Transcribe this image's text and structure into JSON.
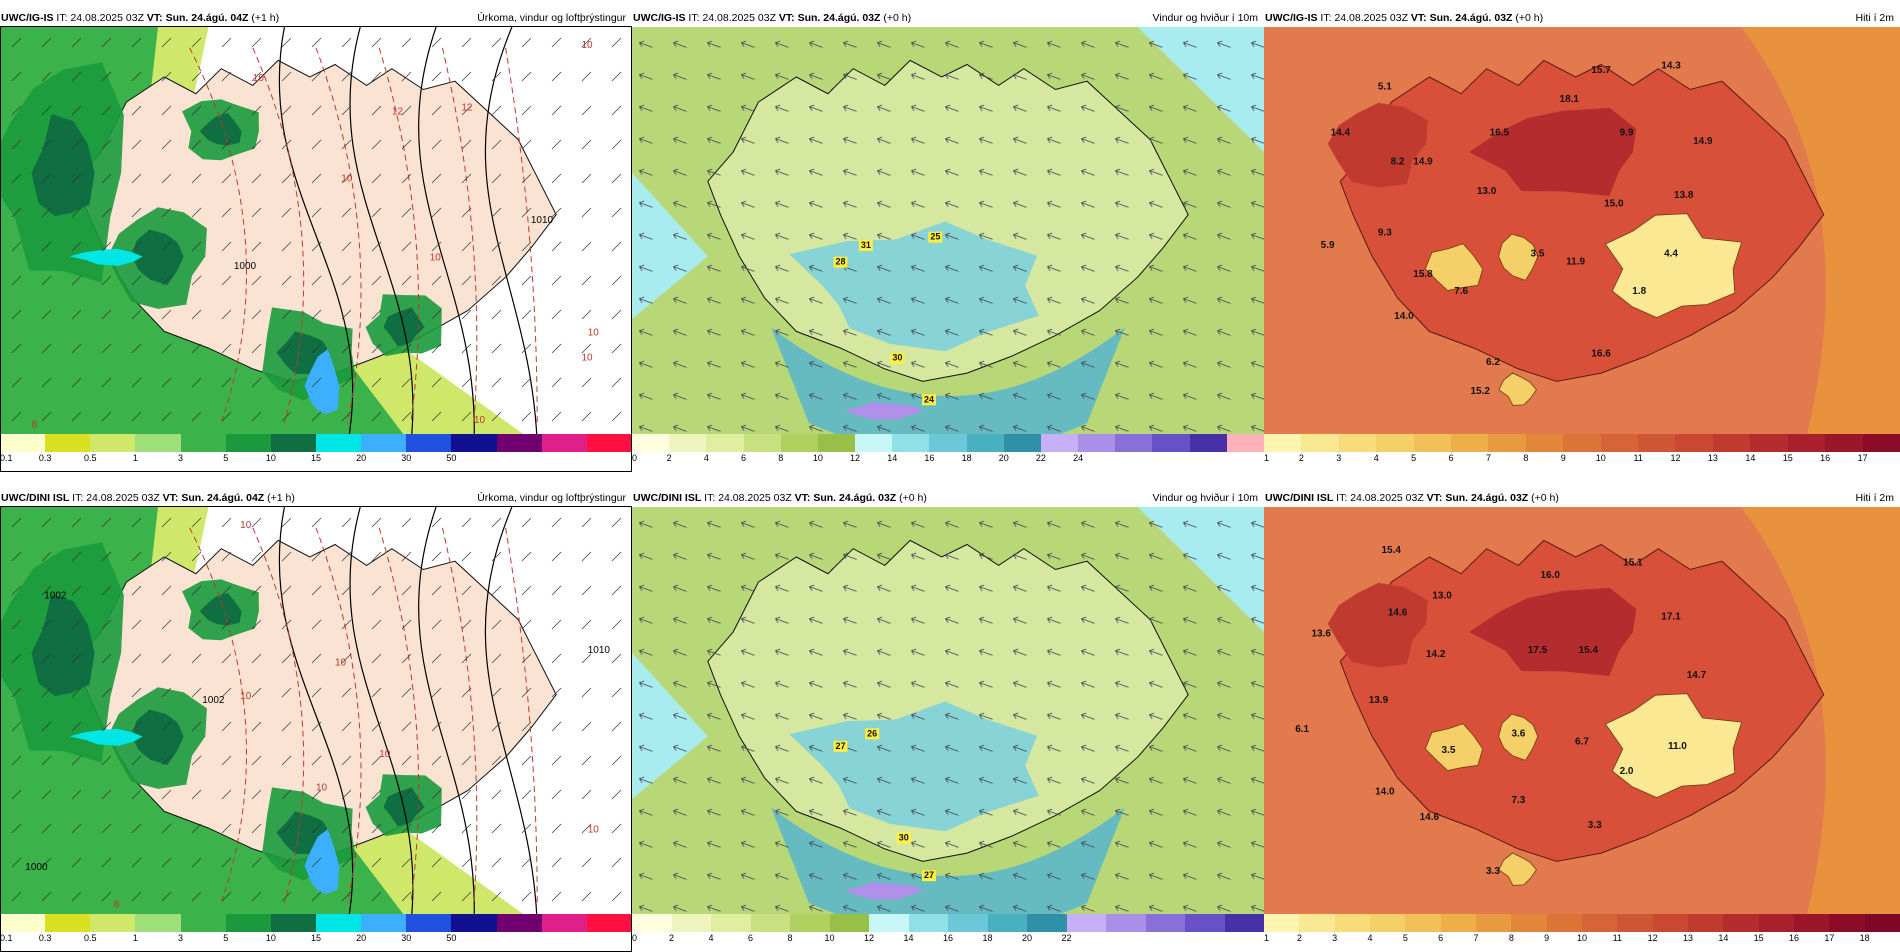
{
  "panels": [
    {
      "id": "r1c1",
      "model": "UWC/IG-IS",
      "it_label": "IT:",
      "it_value": "24.08.2025 03Z",
      "vt_label": "VT:",
      "vt_value": "Sun. 24.ágú. 04Z",
      "lead": "(+1 h)",
      "title": "Úrkoma, vindur og loftþrýstingur",
      "kind": "precip",
      "contour_labels": [
        "10",
        "10",
        "12",
        "12",
        "10",
        "10",
        "10",
        "10",
        "1000",
        "8",
        "10",
        "1010"
      ],
      "colorbar": {
        "colors": [
          "#ffffcc",
          "#d9e021",
          "#cfe86a",
          "#9fe07a",
          "#3cb34a",
          "#1a9a3c",
          "#0f6e42",
          "#00e5e5",
          "#3cb0ff",
          "#2050e0",
          "#101090",
          "#700070",
          "#e0208a",
          "#ff1040"
        ],
        "ticks": [
          "0.1",
          "0.3",
          "0.5",
          "1",
          "3",
          "5",
          "10",
          "15",
          "20",
          "30",
          "50"
        ]
      }
    },
    {
      "id": "r1c2",
      "model": "UWC/IG-IS",
      "it_label": "IT:",
      "it_value": "24.08.2025 03Z",
      "vt_label": "VT:",
      "vt_value": "Sun. 24.ágú. 03Z",
      "lead": "(+0 h)",
      "title": "Vindur og hviður í 10m",
      "kind": "wind",
      "gust_labels": [
        "28",
        "31",
        "25",
        "30",
        "24"
      ],
      "colorbar": {
        "colors": [
          "#ffffe0",
          "#f0f5c0",
          "#e0eea0",
          "#c8e080",
          "#b0d060",
          "#98c048",
          "#c8f5f5",
          "#90e0e8",
          "#6cc8d8",
          "#48b0c0",
          "#3090a8",
          "#c8b0f8",
          "#a890e8",
          "#8870d8",
          "#6850c8",
          "#4830a8",
          "#ffb0b8"
        ],
        "ticks": [
          "0",
          "2",
          "4",
          "6",
          "8",
          "10",
          "12",
          "14",
          "16",
          "18",
          "20",
          "22",
          "24"
        ]
      }
    },
    {
      "id": "r1c3",
      "model": "UWC/IG-IS",
      "it_label": "IT:",
      "it_value": "24.08.2025 03Z",
      "vt_label": "VT:",
      "vt_value": "Sun. 24.ágú. 03Z",
      "lead": "(+0 h)",
      "title": "Hiti í 2m",
      "kind": "temp",
      "temp_labels": [
        "5.1",
        "15.7",
        "14.3",
        "14.4",
        "18.1",
        "8.2",
        "16.5",
        "14.9",
        "9.9",
        "14.9",
        "13.0",
        "13.8",
        "15.0",
        "5.9",
        "9.3",
        "3.5",
        "15.8",
        "11.9",
        "4.4",
        "7.6",
        "1.8",
        "14.0",
        "6.2",
        "16.6",
        "15.2"
      ],
      "colorbar": {
        "colors": [
          "#fff5b0",
          "#fbe892",
          "#f8dc7a",
          "#f5d068",
          "#f2c058",
          "#eeae48",
          "#e89a40",
          "#e2863a",
          "#dc7438",
          "#d66436",
          "#cf5634",
          "#c84832",
          "#c03a30",
          "#b52c2e",
          "#a8202c",
          "#9a162a",
          "#8c0c28"
        ],
        "ticks": [
          "1",
          "2",
          "3",
          "4",
          "5",
          "6",
          "7",
          "8",
          "9",
          "10",
          "11",
          "12",
          "13",
          "14",
          "15",
          "16",
          "17"
        ]
      }
    },
    {
      "id": "r2c1",
      "model": "UWC/DINI ISL",
      "it_label": "IT:",
      "it_value": "24.08.2025 03Z",
      "vt_label": "VT:",
      "vt_value": "Sun. 24.ágú. 04Z",
      "lead": "(+1 h)",
      "title": "Úrkoma, vindur og loftþrýstingur",
      "kind": "precip",
      "contour_labels": [
        "10",
        "1002",
        "1000",
        "10",
        "1010",
        "10",
        "10",
        "1002",
        "8",
        "10",
        "10"
      ],
      "colorbar": {
        "colors": [
          "#ffffcc",
          "#d9e021",
          "#cfe86a",
          "#9fe07a",
          "#3cb34a",
          "#1a9a3c",
          "#0f6e42",
          "#00e5e5",
          "#3cb0ff",
          "#2050e0",
          "#101090",
          "#700070",
          "#e0208a",
          "#ff1040"
        ],
        "ticks": [
          "0.1",
          "0.3",
          "0.5",
          "1",
          "3",
          "5",
          "10",
          "15",
          "20",
          "30",
          "50"
        ]
      }
    },
    {
      "id": "r2c2",
      "model": "UWC/DINI ISL",
      "it_label": "IT:",
      "it_value": "24.08.2025 03Z",
      "vt_label": "VT:",
      "vt_value": "Sun. 24.ágú. 03Z",
      "lead": "(+0 h)",
      "title": "Vindur og hviður í 10m",
      "kind": "wind",
      "gust_labels": [
        "27",
        "26",
        "30",
        "27"
      ],
      "colorbar": {
        "colors": [
          "#ffffe0",
          "#f0f5c0",
          "#e0eea0",
          "#c8e080",
          "#b0d060",
          "#98c048",
          "#c8f5f5",
          "#90e0e8",
          "#6cc8d8",
          "#48b0c0",
          "#3090a8",
          "#c8b0f8",
          "#a890e8",
          "#8870d8",
          "#6850c8",
          "#4830a8"
        ],
        "ticks": [
          "0",
          "2",
          "4",
          "6",
          "8",
          "10",
          "12",
          "14",
          "16",
          "18",
          "20",
          "22"
        ]
      }
    },
    {
      "id": "r2c3",
      "model": "UWC/DINI ISL",
      "it_label": "IT:",
      "it_value": "24.08.2025 03Z",
      "vt_label": "VT:",
      "vt_value": "Sun. 24.ágú. 03Z",
      "lead": "(+0 h)",
      "title": "Hiti í 2m",
      "kind": "temp",
      "temp_labels": [
        "15.4",
        "15.1",
        "16.0",
        "13.0",
        "14.6",
        "17.1",
        "13.6",
        "14.2",
        "17.5",
        "15.4",
        "13.9",
        "14.7",
        "6.1",
        "3.5",
        "3.6",
        "6.7",
        "11.0",
        "14.0",
        "2.0",
        "7.3",
        "14.6",
        "3.3",
        "3.3"
      ],
      "colorbar": {
        "colors": [
          "#fff5b0",
          "#fbe892",
          "#f8dc7a",
          "#f5d068",
          "#f2c058",
          "#eeae48",
          "#e89a40",
          "#e2863a",
          "#dc7438",
          "#d66436",
          "#cf5634",
          "#c84832",
          "#c03a30",
          "#b52c2e",
          "#a8202c",
          "#9a162a",
          "#8c0c28",
          "#7e0626"
        ],
        "ticks": [
          "1",
          "2",
          "3",
          "4",
          "5",
          "6",
          "7",
          "8",
          "9",
          "10",
          "11",
          "12",
          "13",
          "14",
          "15",
          "16",
          "17",
          "18"
        ]
      }
    }
  ]
}
